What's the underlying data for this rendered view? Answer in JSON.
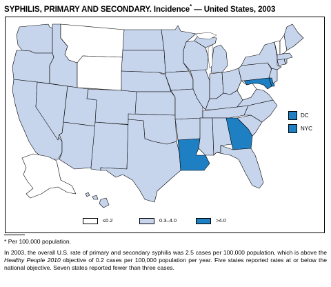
{
  "title": {
    "main": "SYPHILIS, PRIMARY AND SECONDARY. Incidence",
    "marker": "*",
    "rest": " — United States, 2003"
  },
  "colors": {
    "low": "#ffffff",
    "mid": "#c6d4ec",
    "high": "#1e7fc2",
    "border": "#000000"
  },
  "legend": [
    {
      "label": "≤0.2",
      "color": "#ffffff"
    },
    {
      "label": "0.3–4.0",
      "color": "#c6d4ec"
    },
    {
      "label": ">4.0",
      "color": "#1e7fc2"
    }
  ],
  "insets": [
    {
      "label": "DC",
      "category": ">4.0"
    },
    {
      "label": "NYC",
      "category": ">4.0"
    }
  ],
  "states_above_4": [
    "Louisiana",
    "Georgia",
    "Maryland",
    "Delaware",
    "DC",
    "NYC"
  ],
  "states_at_or_below_0_2": [
    "Montana",
    "Wyoming",
    "West Virginia",
    "Vermont",
    "New Hampshire"
  ],
  "footnote": "* Per 100,000 population.",
  "note": {
    "part1": "In 2003, the overall U.S. rate of primary and secondary syphilis was 2.5 cases per 100,000 population, which is above the ",
    "italic": "Healthy People 2010",
    "part2": " objective of 0.2 cases per 100,000 population per year. Five states reported rates at or below the national objective. Seven states reported fewer than three cases."
  }
}
